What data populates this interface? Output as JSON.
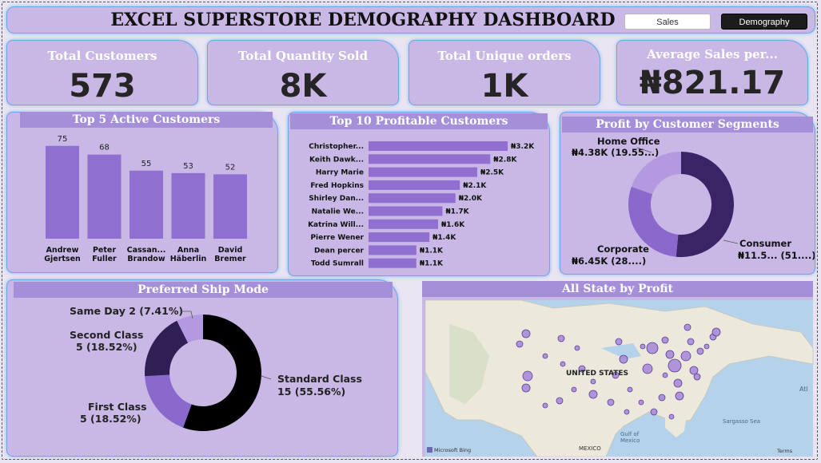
{
  "header": {
    "title": "EXCEL SUPERSTORE DEMOGRAPHY DASHBOARD",
    "nav_sales": "Sales",
    "nav_demography": "Demography"
  },
  "kpis": [
    {
      "label": "Total Customers",
      "value": "573"
    },
    {
      "label": "Total Quantity Sold",
      "value": "8K"
    },
    {
      "label": "Total Unique orders",
      "value": "1K"
    },
    {
      "label": "Average Sales per...",
      "value": "₦821.17"
    }
  ],
  "panels": {
    "top5_title": "Top 5 Active Customers",
    "top10_title": "Top 10 Profitable Customers",
    "segments_title": "Profit by Customer Segments",
    "shipmode_title": "Preferred Ship Mode",
    "map_title": "All State by Profit"
  },
  "map": {
    "country_label": "UNITED STATES",
    "gulf_label": "Gulf of\nMexico",
    "mexico_label": "MEXICO",
    "sargasso_label": "Sargasso Sea",
    "atlantic_label": "Atl",
    "bing_label": "Microsoft Bing",
    "terms_label": "Terms"
  },
  "colors": {
    "panel_bg": "#c9b8e6",
    "bar": "#8f6fcf",
    "header_bar": "#a68fd9",
    "donut_dark": "#3b2466",
    "donut_mid": "#8b68cc",
    "donut_light": "#b39ae0",
    "ship_black": "#000000",
    "ship_dark": "#2f1f55"
  },
  "chart_data": [
    {
      "type": "bar",
      "title": "Top 5 Active Customers",
      "categories": [
        "Andrew Gjertsen",
        "Peter Fuller",
        "Cassan... Brandow",
        "Anna Häberlin",
        "David Bremer"
      ],
      "category_lines": [
        [
          "Andrew",
          "Gjertsen"
        ],
        [
          "Peter",
          "Fuller"
        ],
        [
          "Cassan...",
          "Brandow"
        ],
        [
          "Anna",
          "Häberlin"
        ],
        [
          "David",
          "Bremer"
        ]
      ],
      "values": [
        75,
        68,
        55,
        53,
        52
      ],
      "ylim": [
        0,
        80
      ]
    },
    {
      "type": "bar",
      "orientation": "horizontal",
      "title": "Top 10 Profitable Customers",
      "categories": [
        "Christopher...",
        "Keith Dawk...",
        "Harry Marie",
        "Fred Hopkins",
        "Shirley Dan...",
        "Natalie We...",
        "Katrina Will...",
        "Pierre Wener",
        "Dean percer",
        "Todd Sumrall"
      ],
      "values": [
        3.2,
        2.8,
        2.5,
        2.1,
        2.0,
        1.7,
        1.6,
        1.4,
        1.1,
        1.1
      ],
      "value_labels": [
        "₦3.2K",
        "₦2.8K",
        "₦2.5K",
        "₦2.1K",
        "₦2.0K",
        "₦1.7K",
        "₦1.6K",
        "₦1.4K",
        "₦1.1K",
        "₦1.1K"
      ]
    },
    {
      "type": "pie",
      "title": "Profit by Customer Segments",
      "donut": true,
      "slices": [
        {
          "name": "Consumer",
          "value": 51.5,
          "label": "₦11.5... (51....)",
          "color": "#3b2466"
        },
        {
          "name": "Corporate",
          "value": 28.9,
          "label": "₦6.45K (28....)",
          "color": "#8b68cc"
        },
        {
          "name": "Home Office",
          "value": 19.55,
          "label": "₦4.38K (19.55...)",
          "color": "#b39ae0"
        }
      ]
    },
    {
      "type": "pie",
      "title": "Preferred Ship Mode",
      "donut": true,
      "slices": [
        {
          "name": "Standard Class",
          "value": 15,
          "label": "15 (55.56%)",
          "color": "#000000"
        },
        {
          "name": "First Class",
          "value": 5,
          "label": "5 (18.52%)",
          "color": "#8b68cc"
        },
        {
          "name": "Second Class",
          "value": 5,
          "label": "5 (18.52%)",
          "color": "#2f1f55"
        },
        {
          "name": "Same Day",
          "value": 2,
          "label": "2 (7.41%)",
          "color": "#b39ae0"
        }
      ]
    }
  ]
}
